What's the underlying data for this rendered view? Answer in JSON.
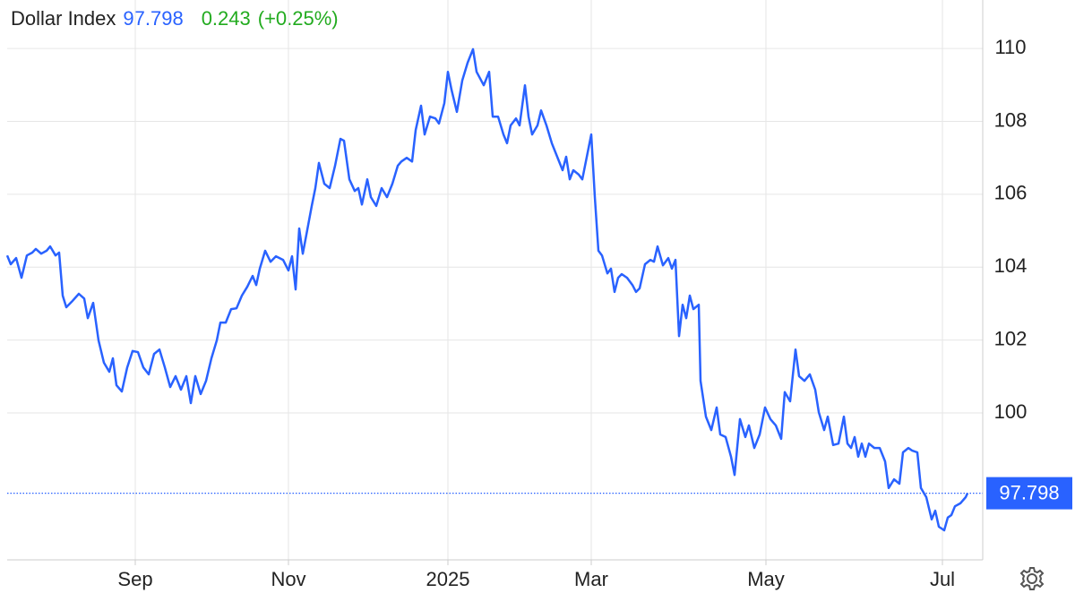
{
  "header": {
    "name": "Dollar Index",
    "price": "97.798",
    "change": "0.243",
    "change_pct": "(+0.25%)"
  },
  "chart_data": {
    "type": "line",
    "xlim": [
      0,
      544.5
    ],
    "xticks": [
      {
        "value": 71.5,
        "label": "Sep"
      },
      {
        "value": 157,
        "label": "Nov"
      },
      {
        "value": 246,
        "label": "2025"
      },
      {
        "value": 326,
        "label": "Mar"
      },
      {
        "value": 423.5,
        "label": "May"
      },
      {
        "value": 522,
        "label": "Jul"
      }
    ],
    "ylim": [
      95.97,
      111.33
    ],
    "yticks": [
      100,
      102,
      104,
      106,
      108,
      110
    ],
    "grid": true,
    "x": [
      0,
      2,
      5,
      8,
      11,
      14,
      16,
      19,
      22,
      24,
      27,
      29,
      31,
      33,
      36,
      40,
      43,
      45,
      48,
      51,
      54,
      57,
      59,
      61,
      64,
      67,
      70,
      73,
      76,
      79,
      82,
      85,
      88,
      91,
      94,
      97,
      100,
      102.5,
      105,
      108,
      111,
      114,
      117,
      119,
      122,
      125,
      128,
      131,
      134,
      137,
      139,
      141,
      144,
      147,
      150,
      154,
      157,
      159,
      161,
      163,
      165,
      167,
      170,
      172,
      174,
      177,
      180,
      183,
      186,
      188,
      191,
      194,
      196,
      198,
      201,
      203,
      206,
      209,
      212,
      215,
      218,
      220,
      223,
      226,
      228,
      231,
      233,
      236,
      239,
      241,
      244,
      246,
      248,
      251,
      254,
      257,
      260,
      262,
      266,
      269,
      271,
      274,
      277,
      279,
      281,
      284,
      286,
      289,
      291,
      293,
      296,
      298,
      301,
      304,
      307,
      310,
      312,
      314,
      316,
      319,
      321,
      323,
      326,
      328,
      330,
      332,
      335,
      337,
      339,
      341,
      343,
      346,
      349,
      351,
      353,
      356,
      359,
      361,
      363,
      366,
      369,
      371,
      373,
      375,
      377,
      379,
      381,
      383,
      386,
      387,
      390,
      393,
      396,
      398,
      401,
      404,
      406,
      409,
      412,
      414,
      417,
      420,
      423,
      426,
      429,
      432,
      434,
      437,
      440,
      442,
      445,
      448,
      451,
      453,
      456,
      458,
      461,
      464,
      467,
      469,
      471,
      473,
      475,
      477,
      479,
      481,
      484,
      487,
      490,
      492,
      495,
      498,
      500,
      503,
      505,
      508,
      510,
      513,
      516,
      518,
      520,
      523,
      525,
      527,
      529,
      532,
      535,
      536
    ],
    "series": [
      {
        "name": "Dollar Index",
        "color": "#2962ff",
        "values": [
          104.32,
          104.08,
          104.25,
          103.71,
          104.32,
          104.4,
          104.5,
          104.37,
          104.45,
          104.57,
          104.32,
          104.4,
          103.22,
          102.9,
          103.05,
          103.27,
          103.14,
          102.6,
          103.02,
          101.99,
          101.38,
          101.13,
          101.5,
          100.76,
          100.59,
          101.25,
          101.7,
          101.67,
          101.25,
          101.06,
          101.62,
          101.74,
          101.25,
          100.71,
          101.01,
          100.64,
          101.01,
          100.27,
          101.01,
          100.52,
          100.88,
          101.5,
          101.99,
          102.48,
          102.48,
          102.85,
          102.87,
          103.22,
          103.46,
          103.76,
          103.51,
          103.96,
          104.45,
          104.15,
          104.3,
          104.2,
          103.91,
          104.3,
          103.39,
          105.06,
          104.37,
          104.89,
          105.68,
          106.17,
          106.86,
          106.29,
          106.17,
          106.78,
          107.52,
          107.47,
          106.41,
          106.09,
          106.17,
          105.72,
          106.41,
          105.92,
          105.68,
          106.17,
          105.92,
          106.29,
          106.78,
          106.9,
          107.0,
          106.9,
          107.76,
          108.43,
          107.64,
          108.13,
          108.08,
          107.94,
          108.5,
          109.36,
          108.87,
          108.26,
          109.12,
          109.61,
          109.98,
          109.36,
          108.99,
          109.36,
          108.13,
          108.13,
          107.64,
          107.4,
          107.89,
          108.08,
          107.89,
          108.99,
          108.13,
          107.64,
          107.89,
          108.3,
          107.89,
          107.4,
          107.03,
          106.66,
          107.03,
          106.41,
          106.66,
          106.54,
          106.41,
          106.9,
          107.64,
          105.92,
          104.45,
          104.32,
          103.83,
          103.96,
          103.32,
          103.71,
          103.81,
          103.71,
          103.51,
          103.32,
          103.42,
          104.08,
          104.2,
          104.15,
          104.57,
          104.05,
          104.25,
          103.96,
          104.2,
          102.11,
          102.97,
          102.6,
          103.22,
          102.85,
          102.97,
          100.88,
          99.9,
          99.53,
          100.15,
          99.41,
          99.34,
          98.8,
          98.3,
          99.83,
          99.34,
          99.66,
          99.04,
          99.41,
          100.15,
          99.83,
          99.66,
          99.29,
          100.57,
          100.32,
          101.74,
          101.01,
          100.88,
          101.06,
          100.64,
          100.02,
          99.53,
          99.9,
          99.12,
          99.16,
          99.9,
          99.16,
          99.04,
          99.34,
          98.8,
          99.16,
          98.8,
          99.16,
          99.04,
          99.04,
          98.67,
          97.94,
          98.18,
          98.06,
          98.92,
          99.04,
          98.97,
          98.92,
          97.94,
          97.69,
          97.08,
          97.32,
          96.88,
          96.78,
          97.13,
          97.2,
          97.44,
          97.52,
          97.69,
          97.798
        ]
      }
    ]
  }
}
